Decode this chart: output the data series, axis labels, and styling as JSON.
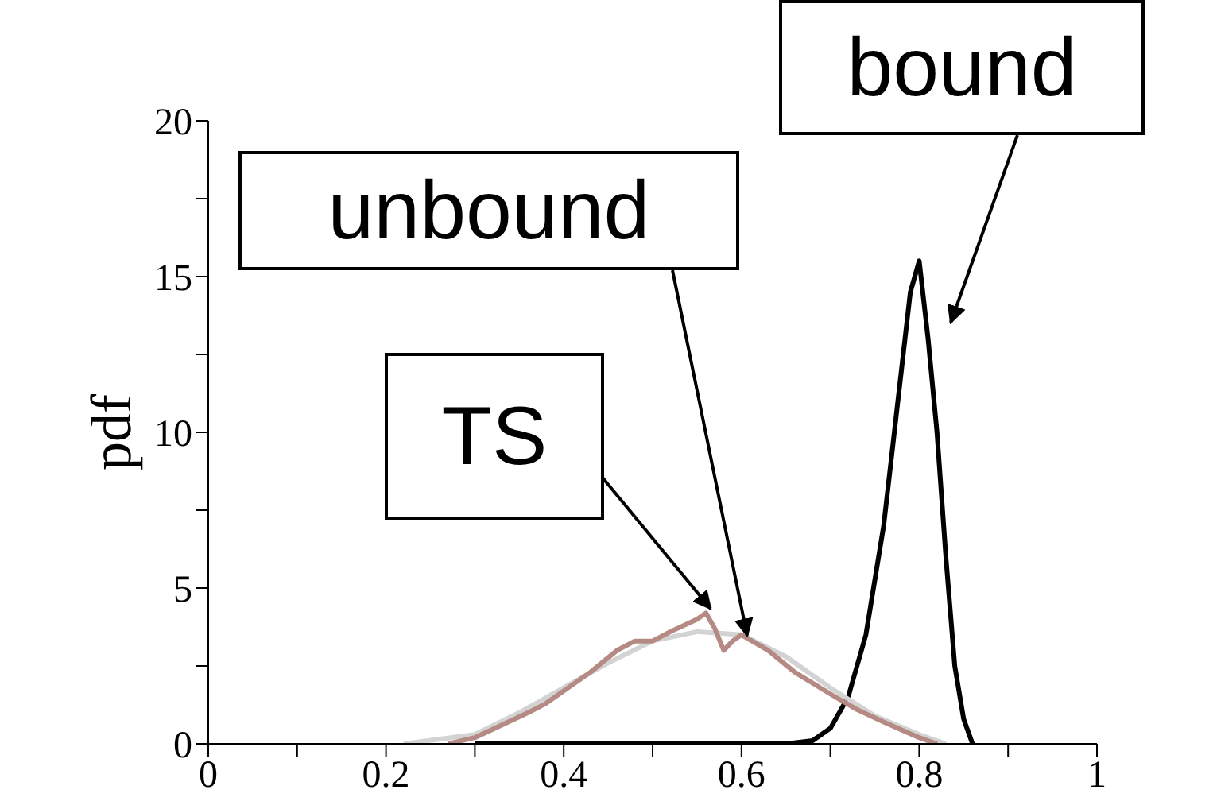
{
  "chart_data": {
    "type": "line",
    "ylabel": "pdf",
    "xlim": [
      0,
      1
    ],
    "xticks": [
      0,
      {
        "value": 0.1,
        "label": null
      },
      0.2,
      {
        "value": 0.3,
        "label": null
      },
      0.4,
      {
        "value": 0.5,
        "label": null
      },
      0.6,
      {
        "value": 0.7,
        "label": null
      },
      0.8,
      {
        "value": 0.9,
        "label": null
      },
      1
    ],
    "ylim": [
      0,
      20
    ],
    "yticks": [
      0,
      {
        "value": 2.5,
        "label": null
      },
      5,
      {
        "value": 7.5,
        "label": null
      },
      10,
      {
        "value": 12.5,
        "label": null
      },
      15,
      {
        "value": 17.5,
        "label": null
      },
      20
    ],
    "grid": false,
    "marker": "none",
    "line_style": "solid",
    "series": [
      {
        "name": "bound",
        "color": "#000000",
        "x": [
          0.3,
          0.65,
          0.68,
          0.7,
          0.72,
          0.74,
          0.76,
          0.78,
          0.79,
          0.8,
          0.81,
          0.82,
          0.83,
          0.84,
          0.85,
          0.86
        ],
        "values": [
          0,
          0,
          0.1,
          0.5,
          1.5,
          3.5,
          7,
          12,
          14.5,
          15.5,
          13,
          10,
          6,
          2.5,
          0.8,
          0
        ]
      },
      {
        "name": "unbound",
        "color": "#d3d3d3",
        "x": [
          0.22,
          0.3,
          0.35,
          0.4,
          0.45,
          0.5,
          0.55,
          0.6,
          0.65,
          0.7,
          0.75,
          0.8,
          0.83
        ],
        "values": [
          0,
          0.3,
          1,
          1.8,
          2.6,
          3.3,
          3.6,
          3.5,
          2.8,
          1.8,
          0.9,
          0.3,
          0
        ]
      },
      {
        "name": "TS",
        "color": "#b58a84",
        "x": [
          0.27,
          0.3,
          0.33,
          0.36,
          0.38,
          0.4,
          0.43,
          0.46,
          0.48,
          0.5,
          0.52,
          0.55,
          0.56,
          0.57,
          0.58,
          0.59,
          0.6,
          0.63,
          0.66,
          0.7,
          0.73,
          0.76,
          0.8,
          0.82
        ],
        "values": [
          0,
          0.2,
          0.6,
          1,
          1.3,
          1.7,
          2.3,
          3,
          3.3,
          3.3,
          3.6,
          4,
          4.2,
          3.7,
          3,
          3.3,
          3.5,
          3,
          2.3,
          1.6,
          1.1,
          0.7,
          0.2,
          0
        ]
      }
    ]
  }
}
